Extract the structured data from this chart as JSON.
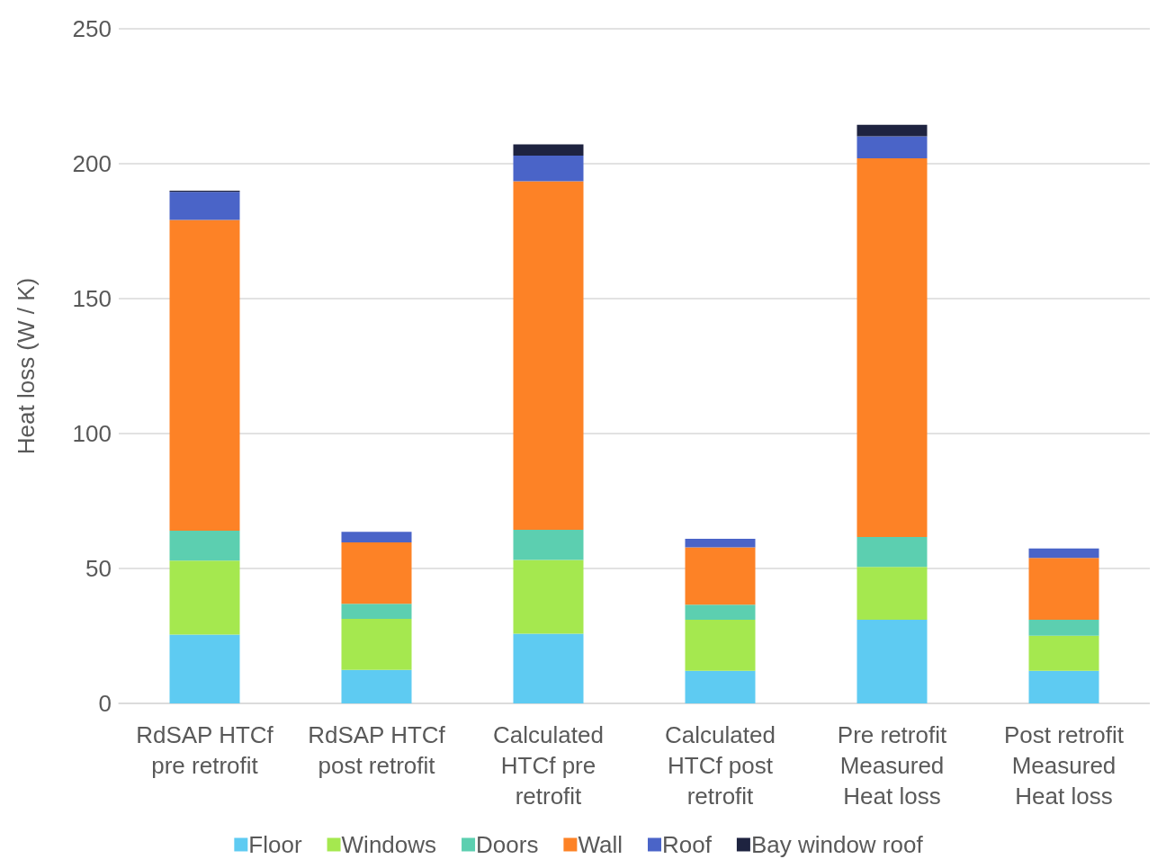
{
  "chart_data": {
    "type": "bar",
    "stacked": true,
    "ylabel": "Heat loss (W / K)",
    "categories": [
      "RdSAP HTCf\npre retrofit",
      "RdSAP HTCf\npost retrofit",
      "Calculated\nHTCf pre\nretrofit",
      "Calculated\nHTCf post\nretrofit",
      "Pre retrofit\nMeasured\nHeat loss",
      "Post retrofit\nMeasured\nHeat loss"
    ],
    "series": [
      {
        "name": "Floor",
        "color": "#5ecbf2",
        "values": [
          25.5,
          12.4,
          25.8,
          12.1,
          31.0,
          12.1
        ]
      },
      {
        "name": "Windows",
        "color": "#a5e84f",
        "values": [
          27.4,
          18.9,
          27.4,
          18.9,
          19.6,
          13.0
        ]
      },
      {
        "name": "Doors",
        "color": "#5ccfb0",
        "values": [
          11.1,
          5.6,
          11.1,
          5.6,
          11.1,
          5.9
        ]
      },
      {
        "name": "Wall",
        "color": "#fd8226",
        "values": [
          115.2,
          22.8,
          129.2,
          21.2,
          140.3,
          22.9
        ]
      },
      {
        "name": "Roof",
        "color": "#4a64c8",
        "values": [
          10.4,
          3.9,
          9.5,
          3.2,
          8.2,
          3.5
        ]
      },
      {
        "name": "Bay window roof",
        "color": "#1e2340",
        "values": [
          0.4,
          0,
          4.2,
          0,
          4.2,
          0
        ]
      }
    ],
    "ylim": [
      0,
      250
    ],
    "yticks": [
      0,
      50,
      100,
      150,
      200,
      250
    ],
    "grid": "y",
    "legend": "bottom"
  }
}
